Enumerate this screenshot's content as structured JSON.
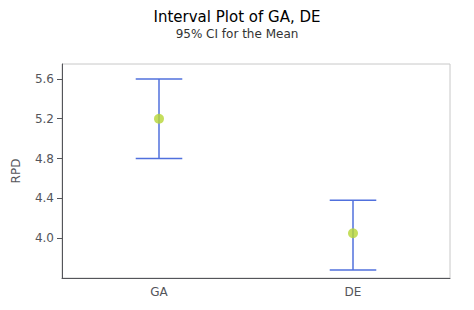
{
  "chart_data": {
    "type": "interval",
    "title": "Interval Plot of GA, DE",
    "subtitle": "95% CI for the Mean",
    "ylabel": "RPD",
    "categories": [
      "GA",
      "DE"
    ],
    "values": [
      5.2,
      4.05
    ],
    "ci_lower": [
      4.8,
      3.68
    ],
    "ci_upper": [
      5.6,
      4.38
    ],
    "ylim": [
      3.6,
      5.75
    ],
    "yticks": [
      {
        "value": 4.0,
        "label": "4.0"
      },
      4.4,
      4.8,
      5.2,
      5.6
    ],
    "grid": false
  }
}
